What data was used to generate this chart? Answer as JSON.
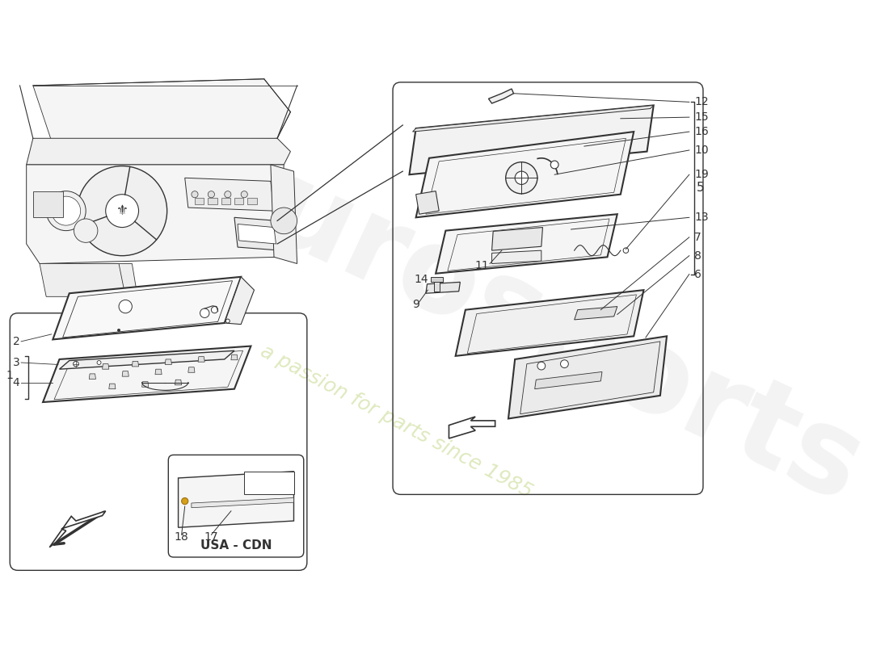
{
  "bg_color": "#ffffff",
  "line_color": "#333333",
  "lw_main": 1.0,
  "lw_thick": 1.5,
  "part_labels_right": [
    "12",
    "15",
    "16",
    "10",
    "19",
    "13",
    "7",
    "8",
    "6"
  ],
  "part_label_5": "5",
  "part_labels_left": [
    "2",
    "3",
    "4"
  ],
  "part_label_1": "1",
  "part_labels_usa": [
    "18",
    "17"
  ],
  "usa_cdn_label": "USA - CDN",
  "watermark_text": "eurosports",
  "watermark_subtext": "a passion for parts since 1985"
}
